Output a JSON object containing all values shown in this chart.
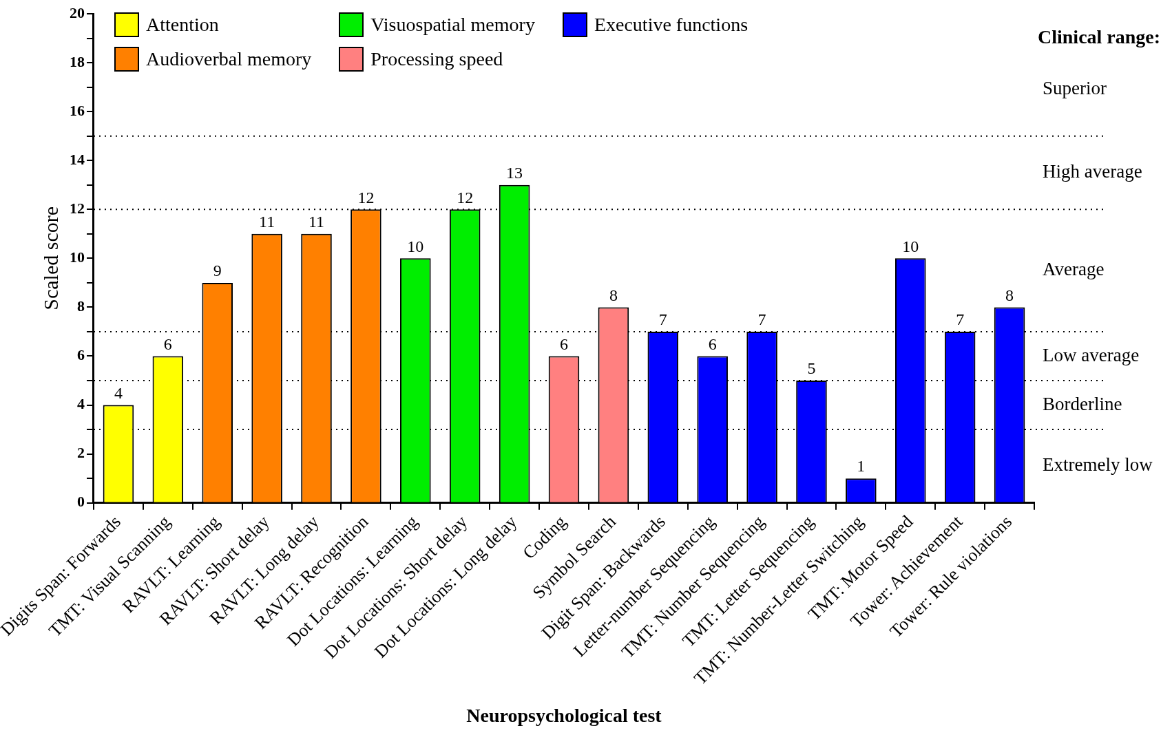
{
  "chart_data": {
    "type": "bar",
    "xlabel": "Neuropsychological test",
    "ylabel": "Scaled score",
    "categories": [
      "Digits Span: Forwards",
      "TMT: Visual Scanning",
      "RAVLT: Learning",
      "RAVLT: Short delay",
      "RAVLT: Long delay",
      "RAVLT: Recognition",
      "Dot Locations: Learning",
      "Dot Locations: Short delay",
      "Dot Locations: Long delay",
      "Coding",
      "Symbol Search",
      "Digit Span: Backwards",
      "Letter-number Sequencing",
      "TMT: Number Sequencing",
      "TMT: Letter Sequencing",
      "TMT: Number-Letter Switching",
      "TMT: Motor Speed",
      "Tower: Achievement",
      "Tower: Rule violations"
    ],
    "series": [
      {
        "name": "Attention",
        "color": "#ffff00",
        "values": [
          4,
          6,
          null,
          null,
          null,
          null,
          null,
          null,
          null,
          null,
          null,
          null,
          null,
          null,
          null,
          null,
          null,
          null,
          null
        ]
      },
      {
        "name": "Audioverbal memory",
        "color": "#ff8000",
        "values": [
          null,
          null,
          9,
          11,
          11,
          12,
          null,
          null,
          null,
          null,
          null,
          null,
          null,
          null,
          null,
          null,
          null,
          null,
          null
        ]
      },
      {
        "name": "Visuospatial memory",
        "color": "#00ee00",
        "values": [
          null,
          null,
          null,
          null,
          null,
          null,
          10,
          12,
          13,
          null,
          null,
          null,
          null,
          null,
          null,
          null,
          null,
          null,
          null
        ]
      },
      {
        "name": "Processing speed",
        "color": "#ff8080",
        "values": [
          null,
          null,
          null,
          null,
          null,
          null,
          null,
          null,
          null,
          6,
          8,
          null,
          null,
          null,
          null,
          null,
          null,
          null,
          null
        ]
      },
      {
        "name": "Executive functions",
        "color": "#0000ff",
        "values": [
          null,
          null,
          null,
          null,
          null,
          null,
          null,
          null,
          null,
          null,
          null,
          7,
          6,
          7,
          5,
          1,
          10,
          7,
          8
        ]
      }
    ],
    "ylim": [
      0,
      20
    ],
    "yticks": [
      0,
      {
        "value": 1,
        "label": null
      },
      2,
      {
        "value": 3,
        "label": null
      },
      4,
      {
        "value": 5,
        "label": null
      },
      6,
      {
        "value": 7,
        "label": null
      },
      8,
      {
        "value": 9,
        "label": null
      },
      10,
      {
        "value": 11,
        "label": null
      },
      12,
      {
        "value": 13,
        "label": null
      },
      14,
      {
        "value": 15,
        "label": null
      },
      16,
      {
        "value": 17,
        "label": null
      },
      18,
      {
        "value": 19,
        "label": null
      },
      20
    ],
    "ref_lines": [
      {
        "axis": "y",
        "value": 3,
        "line_style": "dotted"
      },
      {
        "axis": "y",
        "value": 5,
        "line_style": "dotted"
      },
      {
        "axis": "y",
        "value": 7,
        "line_style": "dotted"
      },
      {
        "axis": "y",
        "value": 12,
        "line_style": "dotted"
      },
      {
        "axis": "y",
        "value": 15,
        "line_style": "dotted"
      }
    ],
    "annotations": [
      "Clinical range:",
      "Superior",
      "High average",
      "Average",
      "Low average",
      "Borderline",
      "Extremely low"
    ],
    "data_labels": true,
    "legend": "top left",
    "grid": false
  }
}
